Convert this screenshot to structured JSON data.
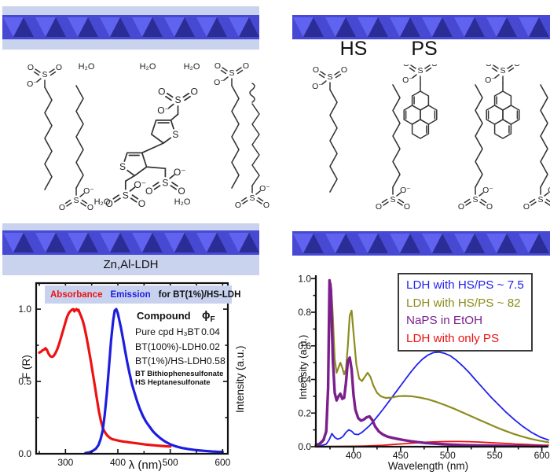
{
  "labels": {
    "water": "H₂O",
    "ldh": "Zn,Al-LDH",
    "hs": "HS",
    "ps": "PS"
  },
  "atoms": {
    "S": "S",
    "O": "O",
    "O_minus": "O⁻"
  },
  "colors": {
    "interlayer_strip": "#c9d3ee",
    "band_bg": "#4749d2",
    "band_light": "#5f63ef",
    "band_dark": "#2b2d96",
    "header_bar_bg": "#c8d2ee",
    "axis": "#111111"
  },
  "chart_data": [
    {
      "type": "line",
      "header": {
        "absorbance": "Absorbance",
        "absorbance_color": "#ee1111",
        "emission": "Emission",
        "emission_color": "#1d1de0",
        "rest": "for BT(1%)/HS-LDH",
        "rest_color": "#111111"
      },
      "xlabel": "λ (nm)",
      "ylabel_left": "F (R)",
      "ylabel_right": "Intensity (a.u.)",
      "xlim": [
        244,
        610
      ],
      "ylim": [
        0,
        1.18
      ],
      "xticks": [
        300,
        400,
        500,
        600
      ],
      "xtick_labels": [
        "300",
        "400",
        "500",
        "600"
      ],
      "yticks": [
        0,
        0.5,
        1
      ],
      "ytick_labels": [
        "0.0",
        "0.5",
        "1.0"
      ],
      "grid": false,
      "frame": true,
      "series": [
        {
          "name": "Absorbance",
          "color": "#ee1111",
          "width": 3.2,
          "x": [
            250,
            253,
            256,
            259,
            262,
            265,
            268,
            271,
            274,
            277,
            280,
            284,
            288,
            292,
            296,
            300,
            303,
            306,
            309,
            312,
            315,
            317,
            319,
            321,
            323,
            325,
            327,
            330,
            333,
            336,
            340,
            344,
            348,
            352,
            356,
            360,
            364,
            368,
            372,
            376,
            380,
            385,
            390,
            396,
            402,
            410,
            420,
            430,
            440,
            455,
            470,
            485,
            500
          ],
          "y": [
            0.7,
            0.705,
            0.715,
            0.72,
            0.73,
            0.715,
            0.69,
            0.675,
            0.67,
            0.675,
            0.69,
            0.72,
            0.76,
            0.81,
            0.86,
            0.91,
            0.945,
            0.97,
            0.985,
            0.995,
            1.0,
            0.985,
            0.995,
            1.0,
            0.99,
            0.995,
            0.975,
            0.95,
            0.92,
            0.88,
            0.81,
            0.73,
            0.65,
            0.56,
            0.47,
            0.38,
            0.29,
            0.22,
            0.17,
            0.145,
            0.125,
            0.11,
            0.1,
            0.095,
            0.09,
            0.085,
            0.08,
            0.075,
            0.07,
            0.063,
            0.058,
            0.054,
            0.05
          ]
        },
        {
          "name": "Emission",
          "color": "#1d1de0",
          "width": 3.2,
          "x": [
            338,
            346,
            352,
            358,
            363,
            367,
            371,
            375,
            379,
            383,
            387,
            391,
            394,
            397,
            400,
            403,
            406,
            410,
            414,
            418,
            422,
            427,
            432,
            437,
            442,
            448,
            454,
            460,
            467,
            474,
            482,
            490,
            500,
            510,
            522,
            535,
            550,
            565,
            580,
            600
          ],
          "y": [
            0.005,
            0.01,
            0.02,
            0.035,
            0.06,
            0.1,
            0.16,
            0.27,
            0.42,
            0.6,
            0.78,
            0.92,
            0.99,
            1.0,
            0.97,
            0.92,
            0.87,
            0.79,
            0.71,
            0.63,
            0.56,
            0.48,
            0.42,
            0.36,
            0.31,
            0.26,
            0.22,
            0.19,
            0.155,
            0.13,
            0.105,
            0.085,
            0.065,
            0.052,
            0.04,
            0.032,
            0.025,
            0.02,
            0.016,
            0.012
          ]
        }
      ],
      "table": {
        "header_col1": "Compound",
        "header_col2": "ϕ",
        "header_col2_sub": "F",
        "rows": [
          [
            "Pure cpd H₃BT",
            "0.04"
          ],
          [
            "BT(100%)-LDH",
            "0.02"
          ],
          [
            "BT(1%)/HS-LDH",
            "0.58"
          ]
        ],
        "footnotes": [
          "BT Bithiophenesulfonate",
          "HS Heptanesulfonate"
        ]
      }
    },
    {
      "type": "line",
      "xlabel": "Wavelength (nm)",
      "ylabel": "Intensity (a.u.)",
      "xlim": [
        360,
        607
      ],
      "ylim": [
        0,
        1.02
      ],
      "xticks": [
        400,
        450,
        500,
        550,
        600
      ],
      "xtick_labels": [
        "400",
        "450",
        "500",
        "550",
        "600"
      ],
      "yticks": [
        0,
        0.2,
        0.4,
        0.6,
        0.8,
        1
      ],
      "ytick_labels": [
        "0.0",
        "0.2",
        "0.4",
        "0.6",
        "0.8",
        "1.0"
      ],
      "grid": false,
      "frame": false,
      "legend": {
        "position": "top-right",
        "items": [
          {
            "label": "LDH with HS/PS ~ 7.5",
            "color": "#2222ee"
          },
          {
            "label": "LDH with HS/PS ~ 82",
            "color": "#8c8c1e"
          },
          {
            "label": "NaPS in EtOH",
            "color": "#7b1f8d"
          },
          {
            "label": "LDH with only PS",
            "color": "#ee1111"
          }
        ]
      },
      "series": [
        {
          "name": "LDH with only PS",
          "color": "#ee1111",
          "width": 1.8,
          "x": [
            360,
            380,
            400,
            412,
            422,
            432,
            442,
            452,
            462,
            472,
            482,
            492,
            502,
            512,
            522,
            532,
            542,
            552,
            562,
            572,
            582,
            592,
            602,
            607
          ],
          "y": [
            0.002,
            0.002,
            0.003,
            0.004,
            0.006,
            0.009,
            0.013,
            0.017,
            0.021,
            0.025,
            0.028,
            0.03,
            0.031,
            0.031,
            0.03,
            0.028,
            0.025,
            0.022,
            0.019,
            0.016,
            0.014,
            0.011,
            0.009,
            0.009
          ]
        },
        {
          "name": "LDH with HS/PS ~ 7.5",
          "color": "#2222ee",
          "width": 1.8,
          "x": [
            360,
            366,
            371,
            374,
            377,
            380,
            383,
            386,
            389,
            392,
            395,
            398,
            401,
            405,
            409,
            413,
            417,
            421,
            426,
            431,
            437,
            443,
            449,
            455,
            461,
            467,
            473,
            479,
            485,
            491,
            497,
            503,
            509,
            516,
            523,
            530,
            538,
            546,
            554,
            562,
            571,
            580,
            589,
            598,
            607
          ],
          "y": [
            0.004,
            0.007,
            0.015,
            0.04,
            0.078,
            0.055,
            0.045,
            0.05,
            0.062,
            0.085,
            0.1,
            0.092,
            0.075,
            0.072,
            0.085,
            0.105,
            0.125,
            0.15,
            0.185,
            0.22,
            0.265,
            0.31,
            0.355,
            0.4,
            0.445,
            0.485,
            0.52,
            0.545,
            0.56,
            0.563,
            0.555,
            0.54,
            0.515,
            0.48,
            0.44,
            0.395,
            0.345,
            0.295,
            0.25,
            0.205,
            0.16,
            0.12,
            0.085,
            0.058,
            0.04
          ]
        },
        {
          "name": "LDH with HS/PS ~ 82",
          "color": "#8c8c1e",
          "width": 2.2,
          "x": [
            360,
            365,
            369,
            372,
            374,
            376,
            378,
            380,
            382,
            384,
            386,
            388,
            390,
            392,
            394,
            396,
            398,
            400,
            403,
            406,
            409,
            412,
            415,
            418,
            421,
            425,
            429,
            434,
            440,
            447,
            454,
            462,
            470,
            479,
            488,
            497,
            506,
            515,
            524,
            533,
            542,
            551,
            560,
            569,
            578,
            587,
            596,
            607
          ],
          "y": [
            0.008,
            0.015,
            0.04,
            0.15,
            0.6,
            0.97,
            0.78,
            0.52,
            0.44,
            0.47,
            0.5,
            0.47,
            0.43,
            0.46,
            0.6,
            0.78,
            0.81,
            0.68,
            0.49,
            0.405,
            0.39,
            0.415,
            0.44,
            0.415,
            0.365,
            0.32,
            0.3,
            0.29,
            0.292,
            0.3,
            0.302,
            0.3,
            0.293,
            0.282,
            0.266,
            0.248,
            0.228,
            0.206,
            0.184,
            0.161,
            0.139,
            0.117,
            0.097,
            0.078,
            0.062,
            0.048,
            0.037,
            0.026
          ]
        },
        {
          "name": "NaPS in EtOH",
          "color": "#7b1f8d",
          "width": 3.4,
          "x": [
            360,
            364,
            368,
            371,
            373,
            374.5,
            376,
            378,
            380,
            382,
            384,
            386,
            388,
            390,
            392,
            394,
            396,
            398,
            400,
            402,
            405,
            408,
            411,
            414,
            417,
            420,
            423,
            427,
            431,
            436,
            441,
            447,
            453,
            460,
            468,
            477,
            487,
            497,
            508,
            520,
            535,
            550,
            570,
            590,
            605
          ],
          "y": [
            0.008,
            0.018,
            0.04,
            0.09,
            0.35,
            0.99,
            0.93,
            0.52,
            0.32,
            0.275,
            0.3,
            0.315,
            0.285,
            0.29,
            0.38,
            0.51,
            0.53,
            0.46,
            0.31,
            0.22,
            0.17,
            0.155,
            0.162,
            0.175,
            0.18,
            0.158,
            0.12,
            0.09,
            0.073,
            0.06,
            0.053,
            0.046,
            0.04,
            0.033,
            0.027,
            0.022,
            0.018,
            0.014,
            0.011,
            0.009,
            0.007,
            0.006,
            0.004,
            0.003,
            0.003
          ]
        }
      ]
    }
  ]
}
